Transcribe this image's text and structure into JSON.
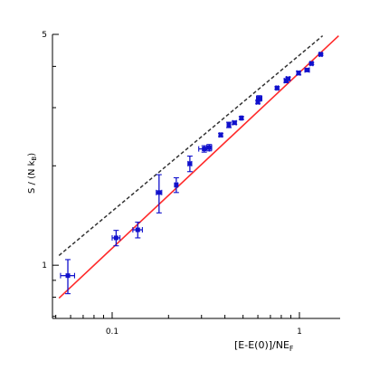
{
  "chart_data": {
    "type": "scatter",
    "xscale": "log",
    "yscale": "log",
    "xlim": [
      0.048,
      1.65
    ],
    "ylim": [
      0.69,
      5.0
    ],
    "grid": false,
    "xlabel": "[E-E(0)]/NE",
    "xlabel_sub": "F",
    "ylabel": "S / (N k",
    "ylabel_sub": "B",
    "ylabel_end": ")",
    "x_ticks": [
      {
        "value": 0.1,
        "label": "0.1"
      },
      {
        "value": 1,
        "label": "1"
      }
    ],
    "y_ticks": [
      {
        "value": 1,
        "label": "1"
      },
      {
        "value": 5,
        "label": "5"
      }
    ],
    "colors": {
      "points": "#1010cc",
      "fit": "#ff2a2a",
      "reference": "#333333"
    },
    "series": [
      {
        "style": "points",
        "points": [
          {
            "x": 0.058,
            "y": 0.93,
            "xerr": 0.005,
            "yerr": 0.11
          },
          {
            "x": 0.105,
            "y": 1.21,
            "xerr": 0.005,
            "yerr": 0.065
          },
          {
            "x": 0.137,
            "y": 1.28,
            "xerr": 0.008,
            "yerr": 0.07
          },
          {
            "x": 0.178,
            "y": 1.66,
            "xerr": 0.006,
            "yerr": 0.22
          },
          {
            "x": 0.22,
            "y": 1.75,
            "xerr": 0.004,
            "yerr": 0.09
          },
          {
            "x": 0.26,
            "y": 2.03,
            "xerr": 0.006,
            "yerr": 0.11
          },
          {
            "x": 0.31,
            "y": 2.25,
            "xerr": 0.02,
            "yerr": 0.05
          },
          {
            "x": 0.33,
            "y": 2.27,
            "xerr": 0.01,
            "yerr": 0.05
          },
          {
            "x": 0.38,
            "y": 2.48,
            "xerr": 0.005,
            "yerr": 0.03
          },
          {
            "x": 0.42,
            "y": 2.66,
            "xerr": 0.005,
            "yerr": 0.05
          },
          {
            "x": 0.45,
            "y": 2.7,
            "xerr": 0.01,
            "yerr": 0.03
          },
          {
            "x": 0.49,
            "y": 2.79,
            "xerr": 0.005,
            "yerr": 0.03
          },
          {
            "x": 0.6,
            "y": 3.12,
            "xerr": 0.01,
            "yerr": 0.04
          },
          {
            "x": 0.61,
            "y": 3.2,
            "xerr": 0.02,
            "yerr": 0.06
          },
          {
            "x": 0.76,
            "y": 3.44,
            "xerr": 0.01,
            "yerr": 0.03
          },
          {
            "x": 0.85,
            "y": 3.62,
            "xerr": 0.02,
            "yerr": 0.05
          },
          {
            "x": 0.87,
            "y": 3.67,
            "xerr": 0.02,
            "yerr": 0.04
          },
          {
            "x": 0.99,
            "y": 3.82,
            "xerr": 0.02,
            "yerr": 0.05
          },
          {
            "x": 1.1,
            "y": 3.9,
            "xerr": 0.03,
            "yerr": 0.04
          },
          {
            "x": 1.16,
            "y": 4.08,
            "xerr": 0.02,
            "yerr": 0.03
          },
          {
            "x": 1.3,
            "y": 4.35,
            "xerr": 0.02,
            "yerr": 0.03
          }
        ]
      },
      {
        "style": "solid-line",
        "points": [
          {
            "x": 0.052,
            "y": 0.795
          },
          {
            "x": 1.62,
            "y": 4.95
          }
        ]
      },
      {
        "style": "dashed-line",
        "points": [
          {
            "x": 0.052,
            "y": 1.07
          },
          {
            "x": 1.33,
            "y": 4.95
          }
        ]
      }
    ]
  }
}
